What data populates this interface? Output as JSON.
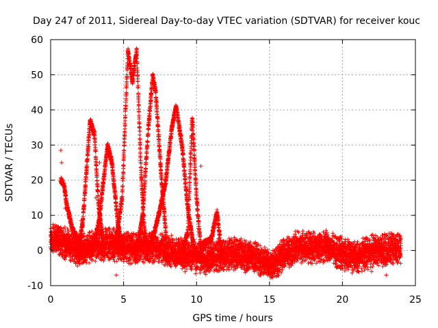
{
  "chart_data": {
    "type": "scatter",
    "title": "Day 247 of 2011, Sidereal Day-to-day VTEC variation (SDTVAR) for receiver kouc",
    "xlabel": "GPS time / hours",
    "ylabel": "SDTVAR / TECUs",
    "xlim": [
      0,
      25
    ],
    "ylim": [
      -10,
      60
    ],
    "xticks": [
      0,
      5,
      10,
      15,
      20,
      25
    ],
    "yticks": [
      -10,
      0,
      10,
      20,
      30,
      40,
      50,
      60
    ],
    "grid": true,
    "marker": "plus",
    "color": "#ff0000",
    "baseline": {
      "x": [
        0,
        0.5,
        1,
        2,
        3,
        4,
        5,
        6,
        7,
        8,
        9,
        10,
        11,
        12,
        13,
        14,
        14.5,
        15,
        15.5,
        16,
        17,
        18,
        19,
        20,
        21,
        22,
        23,
        24
      ],
      "y": [
        3,
        3,
        2,
        0,
        1,
        2,
        1,
        1,
        1,
        0,
        -1,
        -2,
        -2,
        -1,
        -1,
        -2,
        -3,
        -4,
        -3,
        -1,
        1,
        1,
        1,
        -1,
        -2,
        0,
        0,
        1
      ],
      "spread": 5
    },
    "arcs": [
      {
        "x": [
          0.7,
          0.9,
          1.1,
          1.5,
          2.0,
          2.5
        ],
        "y": [
          20,
          19,
          13,
          6,
          2,
          0
        ]
      },
      {
        "x": [
          1.8,
          2.2,
          2.7,
          3.0,
          3.3,
          3.7
        ],
        "y": [
          -2,
          8,
          37,
          33,
          12,
          -1
        ]
      },
      {
        "x": [
          2.8,
          3.3,
          3.9,
          4.2,
          4.6,
          5.0
        ],
        "y": [
          -1,
          8,
          30,
          25,
          8,
          -1
        ]
      },
      {
        "x": [
          4.3,
          4.9,
          5.3,
          5.6,
          5.9,
          6.2,
          6.5
        ],
        "y": [
          -2,
          15,
          57,
          48,
          57,
          22,
          1
        ]
      },
      {
        "x": [
          5.8,
          6.3,
          6.7,
          7.0,
          7.2,
          7.6,
          8.0
        ],
        "y": [
          -3,
          10,
          35,
          50,
          45,
          20,
          0
        ]
      },
      {
        "x": [
          6.5,
          7.1,
          7.5,
          7.9,
          8.3,
          8.6,
          9.0,
          9.4,
          9.8
        ],
        "y": [
          -2,
          5,
          12,
          20,
          35,
          41,
          30,
          12,
          1
        ]
      },
      {
        "x": [
          8.8,
          9.4,
          9.7,
          10.0,
          10.3
        ],
        "y": [
          -3,
          5,
          38,
          15,
          0
        ]
      },
      {
        "x": [
          10.0,
          10.5,
          11.0,
          11.4,
          11.7
        ],
        "y": [
          -3,
          2,
          3,
          11,
          0
        ]
      }
    ],
    "outliers": {
      "x": [
        0.7,
        0.75,
        1.0,
        2.1,
        2.5,
        3.1,
        3.35,
        4.5,
        10.3,
        13.7,
        14.4,
        15.0,
        19.8,
        21.0,
        22.0,
        23.0
      ],
      "y": [
        28.5,
        25,
        12,
        8.5,
        4,
        15,
        25,
        -7,
        24,
        -5,
        -7,
        -5,
        -3,
        -5,
        -6,
        -7
      ]
    }
  }
}
